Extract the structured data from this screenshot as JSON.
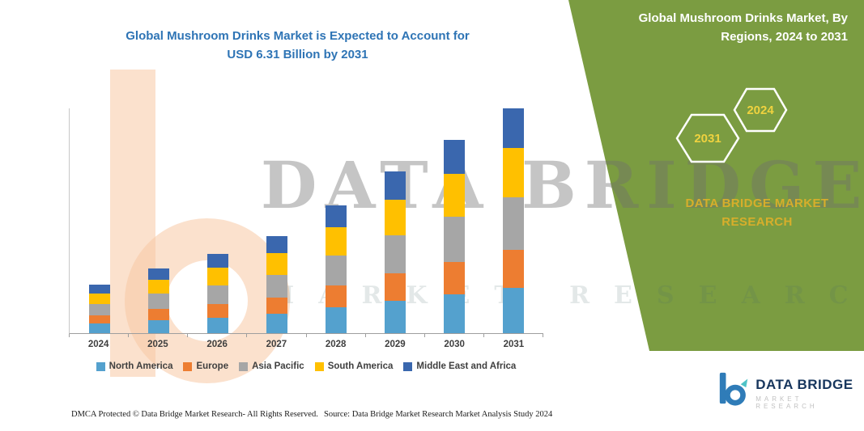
{
  "main": {
    "title_line1": "Global Mushroom Drinks Market is Expected to Account for",
    "title_line2": "USD 6.31 Billion by 2031",
    "title_color": "#2E74B5"
  },
  "side_panel": {
    "bg_color": "#7B9C41",
    "title_line1": "Global Mushroom Drinks Market, By",
    "title_line2": "Regions, 2024 to 2031",
    "badges": [
      "2031",
      "2024"
    ],
    "badge_text_color": "#EFD23F",
    "brand_line1": "DATA BRIDGE MARKET",
    "brand_line2": "RESEARCH",
    "brand_text_color": "#D7AE2B"
  },
  "watermark": {
    "line1": "DATA BRIDGE",
    "line2": "MARKET RESEARCH"
  },
  "footer": {
    "left": "DMCA Protected © Data Bridge Market Research-  All Rights Reserved.",
    "right": "Source: Data Bridge Market Research  Market Analysis Study 2024"
  },
  "logo": {
    "name": "DATA BRIDGE",
    "subtext": "MARKET RESEARCH"
  },
  "chart_data": {
    "type": "bar",
    "stacked": true,
    "title": "Global Mushroom Drinks Market is Expected to Account for USD 6.31 Billion by 2031",
    "unit": "USD Billion",
    "categories": [
      "2024",
      "2025",
      "2026",
      "2027",
      "2028",
      "2029",
      "2030",
      "2031"
    ],
    "series": [
      {
        "name": "North America",
        "color": "#54A1CE",
        "values": [
          0.27,
          0.36,
          0.44,
          0.54,
          0.72,
          0.91,
          1.08,
          1.26
        ]
      },
      {
        "name": "Europe",
        "color": "#ED7D31",
        "values": [
          0.23,
          0.31,
          0.38,
          0.46,
          0.61,
          0.77,
          0.92,
          1.07
        ]
      },
      {
        "name": "Asia Pacific",
        "color": "#A6A6A6",
        "values": [
          0.32,
          0.43,
          0.52,
          0.64,
          0.84,
          1.06,
          1.27,
          1.48
        ]
      },
      {
        "name": "South America",
        "color": "#FFC000",
        "values": [
          0.3,
          0.4,
          0.49,
          0.6,
          0.79,
          1.0,
          1.19,
          1.39
        ]
      },
      {
        "name": "Middle East and Africa",
        "color": "#3A67AE",
        "values": [
          0.24,
          0.32,
          0.39,
          0.48,
          0.63,
          0.79,
          0.95,
          1.1
        ]
      }
    ],
    "totals": [
      1.36,
      1.82,
      2.22,
      2.72,
      3.59,
      4.53,
      5.41,
      6.3
    ],
    "xlabel": "",
    "ylabel": "",
    "ylim": [
      0,
      6.5
    ],
    "legend_position": "bottom",
    "grid": false
  }
}
